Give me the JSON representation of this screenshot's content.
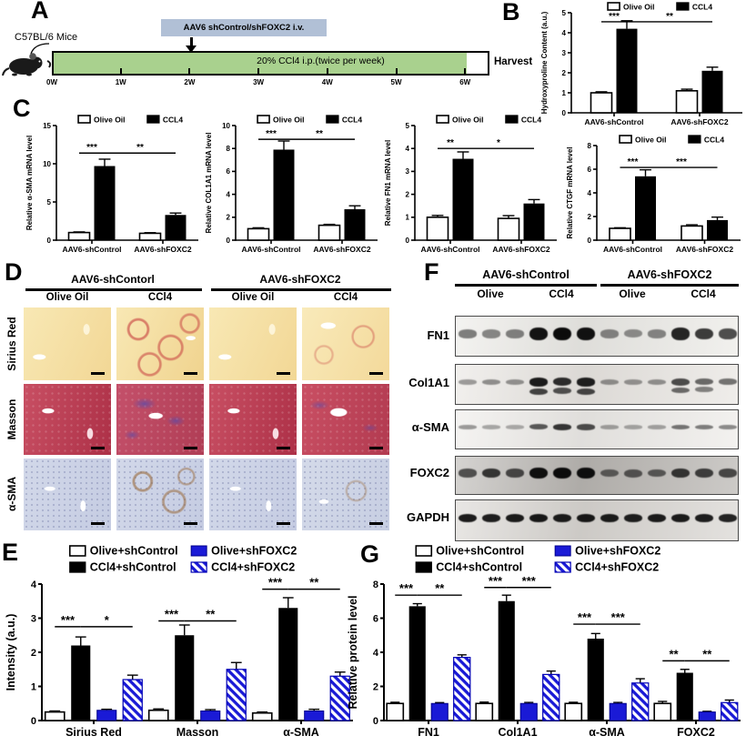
{
  "panel_a": {
    "label": "A",
    "mouse_label": "C57BL/6 Mice",
    "injection_box": "AAV6 shControl/shFOXC2  i.v.",
    "treatment_label": "20% CCl4 i.p.(twice per week)",
    "weeks": [
      "0W",
      "1W",
      "2W",
      "3W",
      "4W",
      "5W",
      "6W"
    ],
    "harvest": "Harvest"
  },
  "panel_b": {
    "label": "B"
  },
  "panel_c": {
    "label": "C"
  },
  "panel_d": {
    "label": "D",
    "groups": [
      "AAV6-shContorl",
      "AAV6-shFOXC2"
    ],
    "col_labels": [
      "Olive Oil",
      "CCl4",
      "Olive Oil",
      "CCl4"
    ],
    "rows": [
      {
        "label": "Sirius Red",
        "stain": "sirius"
      },
      {
        "label": "Masson",
        "stain": "masson"
      },
      {
        "label": "α-SMA",
        "stain": "asma"
      }
    ],
    "variants": [
      "clean",
      "fib",
      "clean",
      "mild"
    ]
  },
  "panel_e": {
    "label": "E"
  },
  "panel_f": {
    "label": "F",
    "groups": [
      "AAV6-shControl",
      "AAV6-shFOXC2"
    ],
    "conditions": [
      "Olive",
      "CCl4",
      "Olive",
      "CCl4"
    ],
    "blots": [
      {
        "label": "FN1",
        "bg": "#ecebe7",
        "band_h": 13,
        "lanes": [
          0.35,
          0.3,
          0.33,
          0.95,
          1,
          0.96,
          0.3,
          0.25,
          0.3,
          0.85,
          0.72,
          0.62
        ]
      },
      {
        "label": "Col1A1",
        "bg": "#e9e6e2",
        "band_h": 9,
        "double": true,
        "lanes": [
          0.18,
          0.24,
          0.22,
          0.9,
          0.8,
          0.88,
          0.22,
          0.2,
          0.22,
          0.62,
          0.45,
          0.4
        ]
      },
      {
        "label": "α-SMA",
        "bg": "#eeece9",
        "band_h": 7,
        "lanes": [
          0.2,
          0.12,
          0.1,
          0.55,
          0.75,
          0.62,
          0.14,
          0.12,
          0.14,
          0.4,
          0.35,
          0.28
        ]
      },
      {
        "label": "FOXC2",
        "bg": "#b9b6b2",
        "band_h": 11,
        "lanes": [
          0.55,
          0.72,
          0.6,
          0.97,
          1,
          0.97,
          0.42,
          0.48,
          0.46,
          0.72,
          0.66,
          0.6
        ]
      },
      {
        "label": "GAPDH",
        "bg": "#d9d6d2",
        "band_h": 9,
        "lanes": [
          0.9,
          0.88,
          0.9,
          0.92,
          0.9,
          0.92,
          0.9,
          0.88,
          0.9,
          0.9,
          0.88,
          0.85
        ]
      }
    ]
  },
  "panel_g": {
    "label": "G"
  },
  "colors": {
    "blue": "#1a1ad6",
    "timeline_green": "#a9d18e",
    "injection_box_bg": "#b1c0d6"
  },
  "chart_data": [
    {
      "id": "B",
      "type": "bar",
      "ylabel": "Hydroxyproline Content (a.u.)",
      "categories": [
        "AAV6-shControl",
        "AAV6-shFOXC2"
      ],
      "series": [
        {
          "name": "Olive Oil",
          "style": "white",
          "values": [
            1.0,
            1.1
          ],
          "errors": [
            0.05,
            0.08
          ]
        },
        {
          "name": "CCL4",
          "style": "black",
          "values": [
            4.2,
            2.1
          ],
          "errors": [
            0.4,
            0.18
          ]
        }
      ],
      "ylim": [
        0,
        5
      ],
      "yticks": [
        0,
        1,
        2,
        3,
        4,
        5
      ],
      "sig": [
        {
          "a": 0,
          "b": 1,
          "label": "***",
          "y": 4.55
        },
        {
          "a": 1,
          "b": 3,
          "label": "**",
          "y": 4.55
        }
      ]
    },
    {
      "id": "C1",
      "type": "bar",
      "ylabel": "Relative α-SMA mRNA level",
      "categories": [
        "AAV6-shControl",
        "AAV6-shFOXC2"
      ],
      "series": [
        {
          "name": "Olive Oil",
          "style": "white",
          "values": [
            1.0,
            0.9
          ],
          "errors": [
            0.08,
            0.08
          ]
        },
        {
          "name": "CCL4",
          "style": "black",
          "values": [
            9.7,
            3.3
          ],
          "errors": [
            0.9,
            0.25
          ]
        }
      ],
      "ylim": [
        0,
        15
      ],
      "yticks": [
        0,
        5,
        10,
        15
      ],
      "sig": [
        {
          "a": 0,
          "b": 1,
          "label": "***",
          "y": 11.4
        },
        {
          "a": 1,
          "b": 3,
          "label": "**",
          "y": 11.4
        }
      ]
    },
    {
      "id": "C2",
      "type": "bar",
      "ylabel": "Relative COL1A1 mRNA level",
      "categories": [
        "AAV6-shControl",
        "AAV6-shFOXC2"
      ],
      "series": [
        {
          "name": "Olive Oil",
          "style": "white",
          "values": [
            1.0,
            1.3
          ],
          "errors": [
            0.08,
            0.08
          ]
        },
        {
          "name": "CCL4",
          "style": "black",
          "values": [
            7.9,
            2.7
          ],
          "errors": [
            0.75,
            0.3
          ]
        }
      ],
      "ylim": [
        0,
        10
      ],
      "yticks": [
        0,
        2,
        4,
        6,
        8,
        10
      ],
      "sig": [
        {
          "a": 0,
          "b": 1,
          "label": "***",
          "y": 8.8
        },
        {
          "a": 1,
          "b": 3,
          "label": "**",
          "y": 8.8
        }
      ]
    },
    {
      "id": "C3",
      "type": "bar",
      "ylabel": "Relative FN1 mRNA level",
      "categories": [
        "AAV6-shControl",
        "AAV6-shFOXC2"
      ],
      "series": [
        {
          "name": "Olive Oil",
          "style": "white",
          "values": [
            1.0,
            0.95
          ],
          "errors": [
            0.08,
            0.12
          ]
        },
        {
          "name": "CCL4",
          "style": "black",
          "values": [
            3.55,
            1.6
          ],
          "errors": [
            0.3,
            0.17
          ]
        }
      ],
      "ylim": [
        0,
        5
      ],
      "yticks": [
        0,
        1,
        2,
        3,
        4,
        5
      ],
      "sig": [
        {
          "a": 0,
          "b": 1,
          "label": "**",
          "y": 4.0
        },
        {
          "a": 1,
          "b": 3,
          "label": "*",
          "y": 4.0
        }
      ]
    },
    {
      "id": "C4",
      "type": "bar",
      "ylabel": "Relative CTGF mRNA level",
      "categories": [
        "AAV6-shControl",
        "AAV6-shFOXC2"
      ],
      "series": [
        {
          "name": "Olive Oil",
          "style": "white",
          "values": [
            1.0,
            1.2
          ],
          "errors": [
            0.05,
            0.1
          ]
        },
        {
          "name": "CCL4",
          "style": "black",
          "values": [
            5.4,
            1.7
          ],
          "errors": [
            0.55,
            0.25
          ]
        }
      ],
      "ylim": [
        0,
        8
      ],
      "yticks": [
        0,
        2,
        4,
        6,
        8
      ],
      "sig": [
        {
          "a": 0,
          "b": 1,
          "label": "***",
          "y": 6.15
        },
        {
          "a": 1,
          "b": 3,
          "label": "***",
          "y": 6.15
        }
      ]
    },
    {
      "id": "E",
      "type": "bar",
      "ylabel": "Intensity (a.u.)",
      "categories": [
        "Sirius Red",
        "Masson",
        "α-SMA"
      ],
      "series": [
        {
          "name": "Olive+shControl",
          "style": "white",
          "values": [
            0.25,
            0.3,
            0.22
          ],
          "errors": [
            0.03,
            0.04,
            0.03
          ]
        },
        {
          "name": "CCl4+shControl",
          "style": "black",
          "values": [
            2.2,
            2.5,
            3.3
          ],
          "errors": [
            0.25,
            0.3,
            0.3
          ]
        },
        {
          "name": "Olive+shFOXC2",
          "style": "blue",
          "values": [
            0.3,
            0.28,
            0.28
          ],
          "errors": [
            0.03,
            0.04,
            0.05
          ]
        },
        {
          "name": "CCl4+shFOXC2",
          "style": "hatch",
          "values": [
            1.2,
            1.5,
            1.3
          ],
          "errors": [
            0.13,
            0.2,
            0.12
          ]
        }
      ],
      "ylim": [
        0,
        4
      ],
      "yticks": [
        0,
        1,
        2,
        3,
        4
      ],
      "sig": [
        {
          "a": 0,
          "b": 1,
          "label": "***",
          "y": 2.75
        },
        {
          "a": 1,
          "b": 3,
          "label": "*",
          "y": 2.75
        },
        {
          "a": 4,
          "b": 5,
          "label": "***",
          "y": 2.92
        },
        {
          "a": 5,
          "b": 7,
          "label": "**",
          "y": 2.92
        },
        {
          "a": 8,
          "b": 9,
          "label": "***",
          "y": 3.85
        },
        {
          "a": 9,
          "b": 11,
          "label": "**",
          "y": 3.85
        }
      ]
    },
    {
      "id": "G",
      "type": "bar",
      "ylabel": "Relative protein level",
      "categories": [
        "FN1",
        "Col1A1",
        "α-SMA",
        "FOXC2"
      ],
      "series": [
        {
          "name": "Olive+shControl",
          "style": "white",
          "values": [
            1.0,
            1.0,
            1.0,
            1.0
          ],
          "errors": [
            0.07,
            0.08,
            0.07,
            0.12
          ]
        },
        {
          "name": "CCl4+shControl",
          "style": "black",
          "values": [
            6.7,
            7.0,
            4.8,
            2.8
          ],
          "errors": [
            0.15,
            0.35,
            0.3,
            0.2
          ]
        },
        {
          "name": "Olive+shFOXC2",
          "style": "blue",
          "values": [
            1.0,
            1.0,
            1.0,
            0.5
          ],
          "errors": [
            0.05,
            0.06,
            0.06,
            0.04
          ]
        },
        {
          "name": "CCl4+shFOXC2",
          "style": "hatch",
          "values": [
            3.7,
            2.7,
            2.2,
            1.05
          ],
          "errors": [
            0.15,
            0.2,
            0.25,
            0.15
          ]
        }
      ],
      "ylim": [
        0,
        8
      ],
      "yticks": [
        0,
        2,
        4,
        6,
        8
      ],
      "sig": [
        {
          "a": 0,
          "b": 1,
          "label": "***",
          "y": 7.35
        },
        {
          "a": 1,
          "b": 3,
          "label": "**",
          "y": 7.35
        },
        {
          "a": 4,
          "b": 5,
          "label": "***",
          "y": 7.8
        },
        {
          "a": 5,
          "b": 7,
          "label": "***",
          "y": 7.8
        },
        {
          "a": 8,
          "b": 9,
          "label": "***",
          "y": 5.65
        },
        {
          "a": 9,
          "b": 11,
          "label": "***",
          "y": 5.65
        },
        {
          "a": 12,
          "b": 13,
          "label": "**",
          "y": 3.5
        },
        {
          "a": 13,
          "b": 15,
          "label": "**",
          "y": 3.5
        }
      ]
    }
  ]
}
